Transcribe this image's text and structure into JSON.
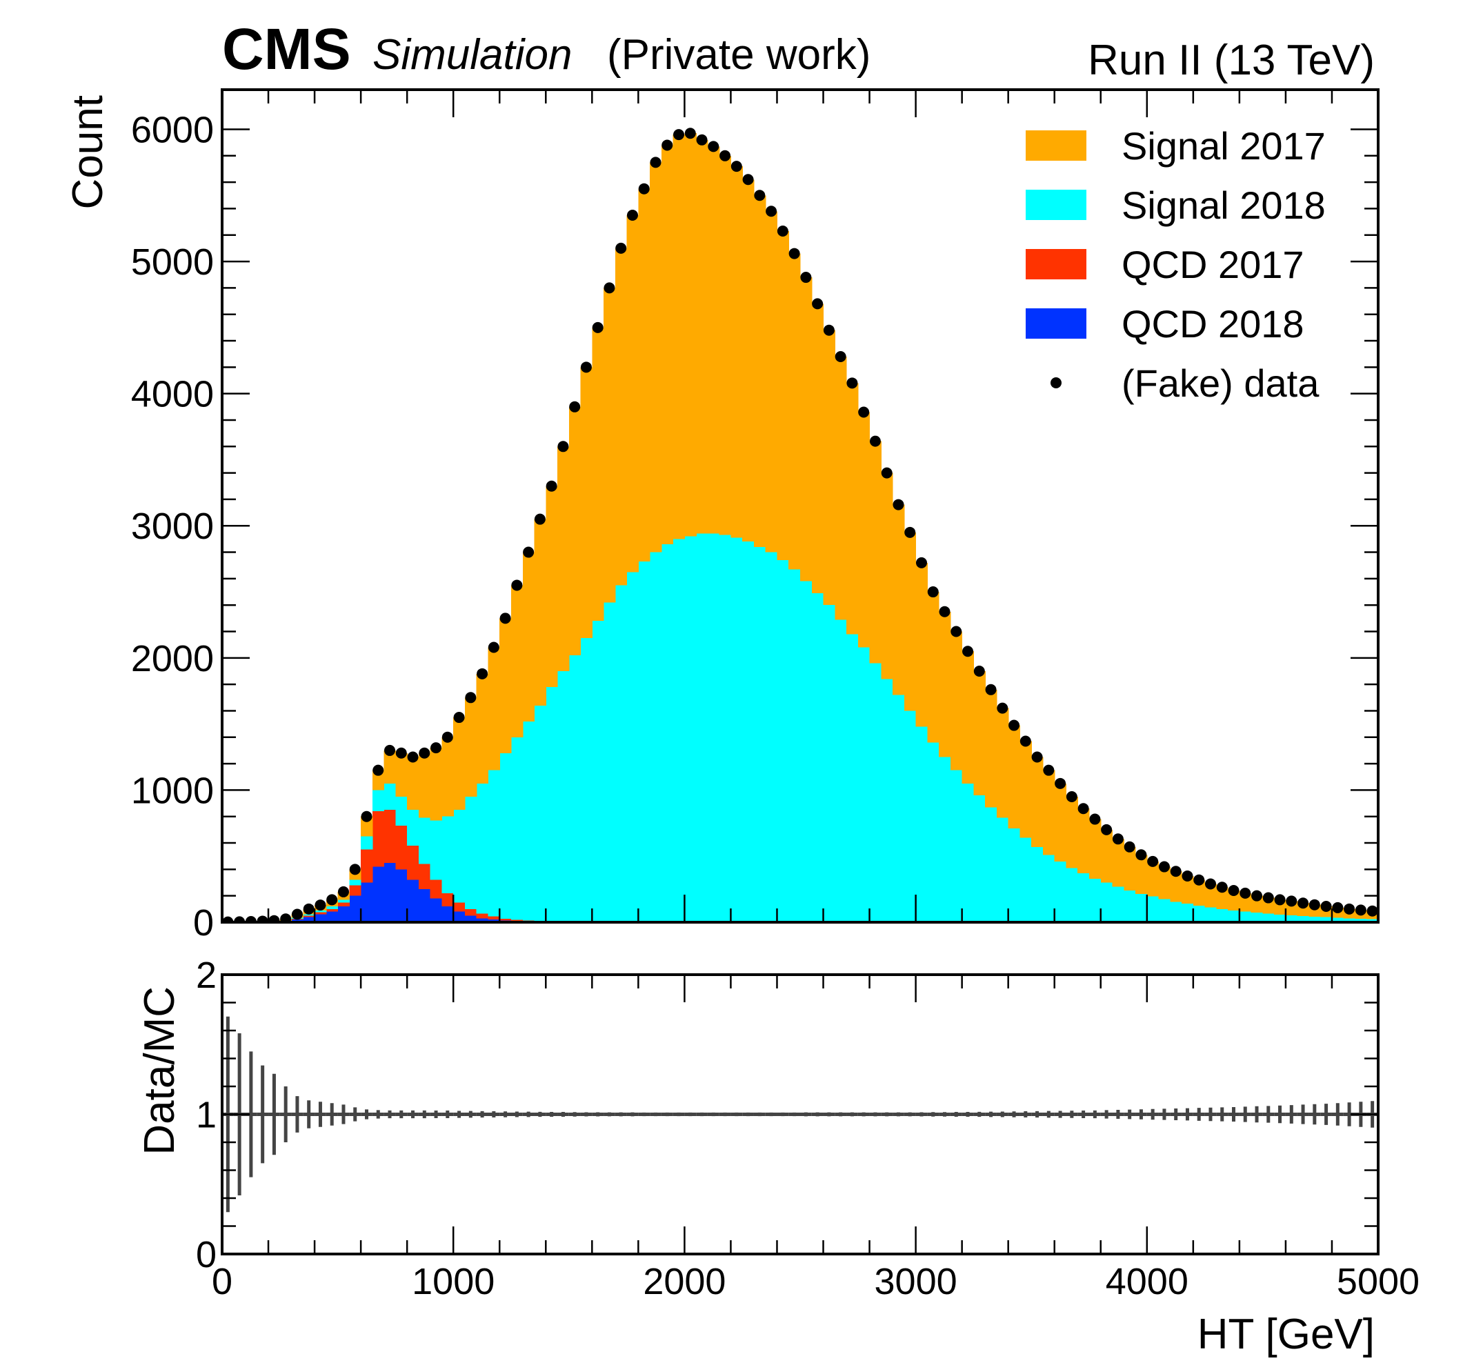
{
  "chart_data": {
    "type": "histogram",
    "stacked": true,
    "title": "CMS",
    "subtitle": "Simulation",
    "note": "(Private work)",
    "energy_label": "Run II (13 TeV)",
    "xlabel": "HT [GeV]",
    "ylabel": "Count",
    "legend": "upper right",
    "xlim": [
      0,
      5000
    ],
    "xticks": [
      0,
      1000,
      2000,
      3000,
      4000,
      5000
    ],
    "ylim": [
      0,
      6300
    ],
    "yticks": [
      0,
      1000,
      2000,
      3000,
      4000,
      5000,
      6000
    ],
    "bins": [
      0,
      50,
      100,
      150,
      200,
      250,
      300,
      350,
      400,
      450,
      500,
      550,
      600,
      650,
      700,
      750,
      800,
      850,
      900,
      950,
      1000,
      1050,
      1100,
      1150,
      1200,
      1250,
      1300,
      1350,
      1400,
      1450,
      1500,
      1550,
      1600,
      1650,
      1700,
      1750,
      1800,
      1850,
      1900,
      1950,
      2000,
      2050,
      2100,
      2150,
      2200,
      2250,
      2300,
      2350,
      2400,
      2450,
      2500,
      2550,
      2600,
      2650,
      2700,
      2750,
      2800,
      2850,
      2900,
      2950,
      3000,
      3050,
      3100,
      3150,
      3200,
      3250,
      3300,
      3350,
      3400,
      3450,
      3500,
      3550,
      3600,
      3650,
      3700,
      3750,
      3800,
      3850,
      3900,
      3950,
      4000,
      4050,
      4100,
      4150,
      4200,
      4250,
      4300,
      4350,
      4400,
      4450,
      4500,
      4550,
      4600,
      4650,
      4700,
      4750,
      4800,
      4850,
      4900,
      4950,
      5000
    ],
    "series": [
      {
        "name": "Signal 2017",
        "color": "#ffaa00",
        "values": [
          2,
          3,
          5,
          8,
          12,
          20,
          25,
          40,
          40,
          50,
          60,
          80,
          150,
          150,
          250,
          330,
          400,
          490,
          550,
          600,
          700,
          750,
          830,
          930,
          1020,
          1150,
          1280,
          1410,
          1520,
          1700,
          1880,
          2050,
          2220,
          2380,
          2550,
          2700,
          2820,
          2950,
          3020,
          3060,
          3050,
          2980,
          2930,
          2870,
          2810,
          2740,
          2660,
          2580,
          2490,
          2390,
          2300,
          2190,
          2080,
          1990,
          1900,
          1780,
          1680,
          1560,
          1440,
          1350,
          1240,
          1140,
          1100,
          1050,
          1000,
          940,
          890,
          830,
          780,
          730,
          680,
          640,
          590,
          540,
          490,
          450,
          400,
          360,
          330,
          295,
          265,
          245,
          230,
          210,
          195,
          178,
          165,
          150,
          140,
          128,
          120,
          112,
          108,
          98,
          90,
          82,
          76,
          70,
          65,
          61
        ]
      },
      {
        "name": "Signal 2018",
        "color": "#00ffff",
        "values": [
          0,
          0,
          0,
          0,
          0,
          5,
          10,
          10,
          15,
          20,
          20,
          40,
          100,
          160,
          200,
          220,
          270,
          350,
          450,
          580,
          700,
          850,
          985,
          1105,
          1253,
          1382,
          1508,
          1632,
          1775,
          1898,
          2020,
          2150,
          2280,
          2420,
          2550,
          2650,
          2730,
          2800,
          2860,
          2900,
          2920,
          2940,
          2940,
          2930,
          2910,
          2880,
          2840,
          2800,
          2740,
          2670,
          2580,
          2490,
          2400,
          2290,
          2180,
          2080,
          1960,
          1840,
          1720,
          1600,
          1480,
          1360,
          1250,
          1150,
          1050,
          960,
          870,
          790,
          710,
          640,
          570,
          510,
          460,
          410,
          370,
          330,
          300,
          270,
          240,
          215,
          195,
          175,
          155,
          140,
          125,
          112,
          100,
          90,
          80,
          72,
          65,
          58,
          52,
          47,
          42,
          38,
          34,
          30,
          27,
          24
        ]
      },
      {
        "name": "QCD 2017",
        "color": "#ff3300",
        "values": [
          0,
          0,
          0,
          0,
          0,
          0,
          5,
          10,
          15,
          20,
          30,
          80,
          250,
          420,
          400,
          330,
          260,
          190,
          140,
          100,
          70,
          50,
          35,
          25,
          15,
          10,
          7,
          5,
          3,
          2,
          0,
          0,
          0,
          0,
          0,
          0,
          0,
          0,
          0,
          0,
          0,
          0,
          0,
          0,
          0,
          0,
          0,
          0,
          0,
          0,
          0,
          0,
          0,
          0,
          0,
          0,
          0,
          0,
          0,
          0,
          0,
          0,
          0,
          0,
          0,
          0,
          0,
          0,
          0,
          0,
          0,
          0,
          0,
          0,
          0,
          0,
          0,
          0,
          0,
          0,
          0,
          0,
          0,
          0,
          0,
          0,
          0,
          0,
          0,
          0,
          0,
          0,
          0,
          0,
          0,
          0,
          0,
          0,
          0,
          0
        ]
      },
      {
        "name": "QCD 2018",
        "color": "#0033ff",
        "values": [
          0,
          0,
          0,
          0,
          0,
          0,
          20,
          40,
          60,
          80,
          120,
          200,
          300,
          420,
          450,
          400,
          320,
          250,
          180,
          120,
          80,
          50,
          30,
          20,
          12,
          8,
          5,
          3,
          2,
          0,
          0,
          0,
          0,
          0,
          0,
          0,
          0,
          0,
          0,
          0,
          0,
          0,
          0,
          0,
          0,
          0,
          0,
          0,
          0,
          0,
          0,
          0,
          0,
          0,
          0,
          0,
          0,
          0,
          0,
          0,
          0,
          0,
          0,
          0,
          0,
          0,
          0,
          0,
          0,
          0,
          0,
          0,
          0,
          0,
          0,
          0,
          0,
          0,
          0,
          0,
          0,
          0,
          0,
          0,
          0,
          0,
          0,
          0,
          0,
          0,
          0,
          0,
          0,
          0,
          0,
          0,
          0,
          0,
          0,
          0
        ]
      }
    ],
    "data": {
      "name": "(Fake) data",
      "color": "#000000",
      "values": [
        2,
        3,
        5,
        8,
        12,
        25,
        60,
        100,
        130,
        170,
        230,
        400,
        800,
        1150,
        1300,
        1280,
        1250,
        1280,
        1320,
        1400,
        1550,
        1700,
        1880,
        2080,
        2300,
        2550,
        2800,
        3050,
        3300,
        3600,
        3900,
        4200,
        4500,
        4800,
        5100,
        5350,
        5550,
        5750,
        5880,
        5960,
        5970,
        5920,
        5870,
        5800,
        5720,
        5620,
        5500,
        5380,
        5230,
        5060,
        4880,
        4680,
        4480,
        4280,
        4080,
        3860,
        3640,
        3400,
        3160,
        2950,
        2720,
        2500,
        2350,
        2200,
        2050,
        1900,
        1760,
        1620,
        1490,
        1370,
        1250,
        1150,
        1050,
        950,
        860,
        780,
        700,
        630,
        570,
        510,
        460,
        420,
        385,
        350,
        320,
        290,
        265,
        240,
        220,
        200,
        185,
        170,
        160,
        145,
        132,
        120,
        110,
        100,
        92,
        85
      ]
    },
    "ratio": {
      "ylabel": "Data/MC",
      "color": "#444444",
      "ylim": [
        0,
        2
      ],
      "yticks": [
        0,
        1,
        2
      ],
      "values": [
        1,
        1,
        1,
        1,
        1,
        1,
        1,
        1,
        1,
        1,
        1,
        1,
        1,
        1,
        1,
        1,
        1,
        1,
        1,
        1,
        1,
        1,
        1,
        1,
        1,
        1,
        1,
        1,
        1,
        1,
        1,
        1,
        1,
        1,
        1,
        1,
        1,
        1,
        1,
        1,
        1,
        1,
        1,
        1,
        1,
        1,
        1,
        1,
        1,
        1,
        1,
        1,
        1,
        1,
        1,
        1,
        1,
        1,
        1,
        1,
        1,
        1,
        1,
        1,
        1,
        1,
        1,
        1,
        1,
        1,
        1,
        1,
        1,
        1,
        1,
        1,
        1,
        1,
        1,
        1,
        1,
        1,
        1,
        1,
        1,
        1,
        1,
        1,
        1,
        1,
        1,
        1,
        1,
        1,
        1,
        1,
        1,
        1,
        1,
        1
      ],
      "errors": [
        0.7,
        0.58,
        0.45,
        0.35,
        0.29,
        0.2,
        0.13,
        0.1,
        0.09,
        0.08,
        0.07,
        0.05,
        0.035,
        0.03,
        0.028,
        0.028,
        0.028,
        0.028,
        0.027,
        0.027,
        0.025,
        0.024,
        0.023,
        0.022,
        0.021,
        0.02,
        0.019,
        0.018,
        0.017,
        0.017,
        0.016,
        0.015,
        0.015,
        0.014,
        0.014,
        0.014,
        0.013,
        0.013,
        0.013,
        0.013,
        0.013,
        0.013,
        0.013,
        0.013,
        0.013,
        0.013,
        0.013,
        0.013,
        0.013,
        0.013,
        0.014,
        0.014,
        0.014,
        0.014,
        0.014,
        0.014,
        0.014,
        0.014,
        0.014,
        0.014,
        0.015,
        0.016,
        0.016,
        0.017,
        0.017,
        0.018,
        0.019,
        0.02,
        0.021,
        0.022,
        0.023,
        0.024,
        0.025,
        0.026,
        0.027,
        0.028,
        0.03,
        0.032,
        0.034,
        0.036,
        0.038,
        0.04,
        0.042,
        0.044,
        0.046,
        0.048,
        0.05,
        0.052,
        0.055,
        0.058,
        0.06,
        0.063,
        0.066,
        0.07,
        0.073,
        0.076,
        0.08,
        0.085,
        0.09,
        0.095
      ]
    }
  }
}
